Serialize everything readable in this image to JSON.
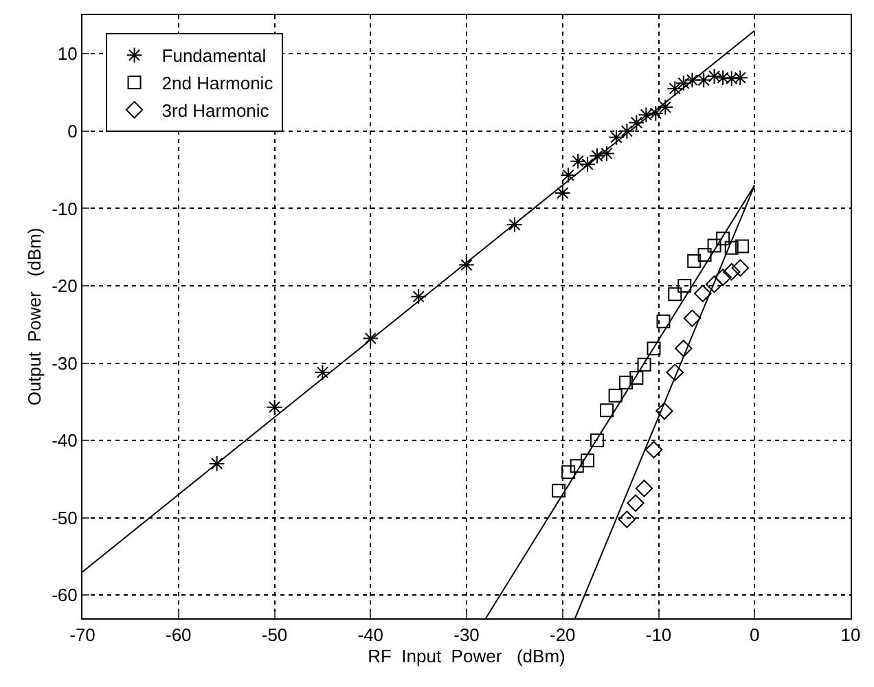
{
  "chart_data": {
    "type": "scatter",
    "xlabel": "RF  Input  Power   (dBm)",
    "ylabel": "Output  Power   (dBm)",
    "xlim": [
      -70,
      10
    ],
    "xticks": [
      -70,
      -60,
      -50,
      -40,
      -30,
      -20,
      -10,
      0,
      10
    ],
    "ylim": [
      -63,
      15
    ],
    "yticks": [
      -60,
      -50,
      -40,
      -30,
      -20,
      -10,
      0,
      10
    ],
    "grid": true,
    "legend": "top left",
    "series": [
      {
        "name": "Fundamental",
        "color": "#000000",
        "marker": "cross",
        "x": [
          -56,
          -50,
          -45,
          -40,
          -35,
          -30,
          -25,
          -20,
          -19.4,
          -18.4,
          -17.4,
          -16.4,
          -15.4,
          -14.4,
          -13.3,
          -12.3,
          -11.3,
          -10.3,
          -9.3,
          -8.3,
          -7.4,
          -6.5,
          -5.3,
          -4.2,
          -3.3,
          -2.4,
          -1.5
        ],
        "values": [
          -43,
          -35.7,
          -31.2,
          -26.8,
          -21.4,
          -17.3,
          -12.1,
          -8,
          -5.7,
          -3.9,
          -4.3,
          -3.2,
          -2.9,
          -0.8,
          0,
          1.1,
          2.1,
          2.3,
          3.1,
          5.5,
          6.2,
          6.6,
          6.6,
          7.1,
          6.9,
          6.8,
          6.9
        ]
      },
      {
        "name": "2nd Harmonic",
        "color": "#000000",
        "marker": "square",
        "x": [
          -20.4,
          -19.4,
          -18.5,
          -17.4,
          -16.4,
          -15.4,
          -14.5,
          -13.4,
          -12.3,
          -11.5,
          -10.5,
          -9.5,
          -8.3,
          -7.3,
          -6.3,
          -5.2,
          -4.2,
          -3.3,
          -2.4,
          -1.3
        ],
        "values": [
          -46.5,
          -44.1,
          -43.3,
          -42.6,
          -40,
          -36.1,
          -34.2,
          -32.5,
          -31.9,
          -30.2,
          -28.1,
          -24.6,
          -21.1,
          -20,
          -16.8,
          -16,
          -14.8,
          -13.9,
          -15.1,
          -14.9
        ]
      },
      {
        "name": "3rd Harmonic",
        "color": "#000000",
        "marker": "diamond",
        "x": [
          -13.3,
          -12.4,
          -11.5,
          -10.5,
          -9.4,
          -8.3,
          -7.4,
          -6.5,
          -5.4,
          -4.2,
          -3.3,
          -2.4,
          -1.5
        ],
        "values": [
          -50.2,
          -48.1,
          -46.2,
          -41.2,
          -36.2,
          -31.2,
          -28.1,
          -24.2,
          -21,
          -19.8,
          -18.9,
          -18.2,
          -17.7
        ]
      },
      {
        "type": "line",
        "color": "#000000",
        "marker": "none",
        "x": [
          -70,
          0
        ],
        "values": [
          -57,
          13
        ]
      },
      {
        "type": "line",
        "color": "#000000",
        "marker": "none",
        "x": [
          -28,
          0
        ],
        "values": [
          -63,
          -7
        ]
      },
      {
        "type": "line",
        "color": "#000000",
        "marker": "none",
        "x": [
          -18.7,
          0
        ],
        "values": [
          -63,
          -7
        ]
      }
    ]
  }
}
